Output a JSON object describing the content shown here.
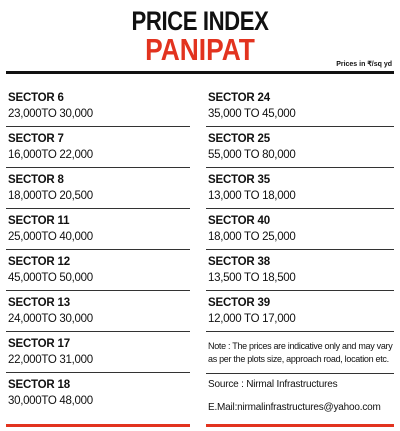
{
  "header": {
    "title": "PRICE INDEX",
    "city": "PANIPAT",
    "units": "Prices in ₹/sq yd"
  },
  "left_column": {
    "entries": [
      {
        "sector": "SECTOR 6",
        "price": "23,000TO 30,000"
      },
      {
        "sector": "SECTOR 7",
        "price": "16,000TO 22,000"
      },
      {
        "sector": "SECTOR 8",
        "price": "18,000TO 20,500"
      },
      {
        "sector": "SECTOR 11",
        "price": "25,000TO 40,000"
      },
      {
        "sector": "SECTOR 12",
        "price": "45,000TO 50,000"
      },
      {
        "sector": "SECTOR 13",
        "price": "24,000TO 30,000"
      },
      {
        "sector": "SECTOR 17",
        "price": "22,000TO 31,000"
      },
      {
        "sector": "SECTOR 18",
        "price": "30,000TO 48,000"
      }
    ]
  },
  "right_column": {
    "entries": [
      {
        "sector": "SECTOR  24",
        "price": "35,000 TO 45,000"
      },
      {
        "sector": "SECTOR 25",
        "price": "55,000 TO 80,000"
      },
      {
        "sector": "SECTOR 35",
        "price": "13,000 TO 18,000"
      },
      {
        "sector": "SECTOR 40",
        "price": "18,000 TO 25,000"
      },
      {
        "sector": "SECTOR 38",
        "price": "13,500 TO 18,500"
      },
      {
        "sector": "SECTOR 39",
        "price": "12,000 TO 17,000"
      }
    ]
  },
  "note": "Note : The prices are indicative only and may vary as per the plots size, approach road, location etc.",
  "source": "Source : Nirmal Infrastructures",
  "email": "E.Mail:nirmalinfrastructures@yahoo.com"
}
